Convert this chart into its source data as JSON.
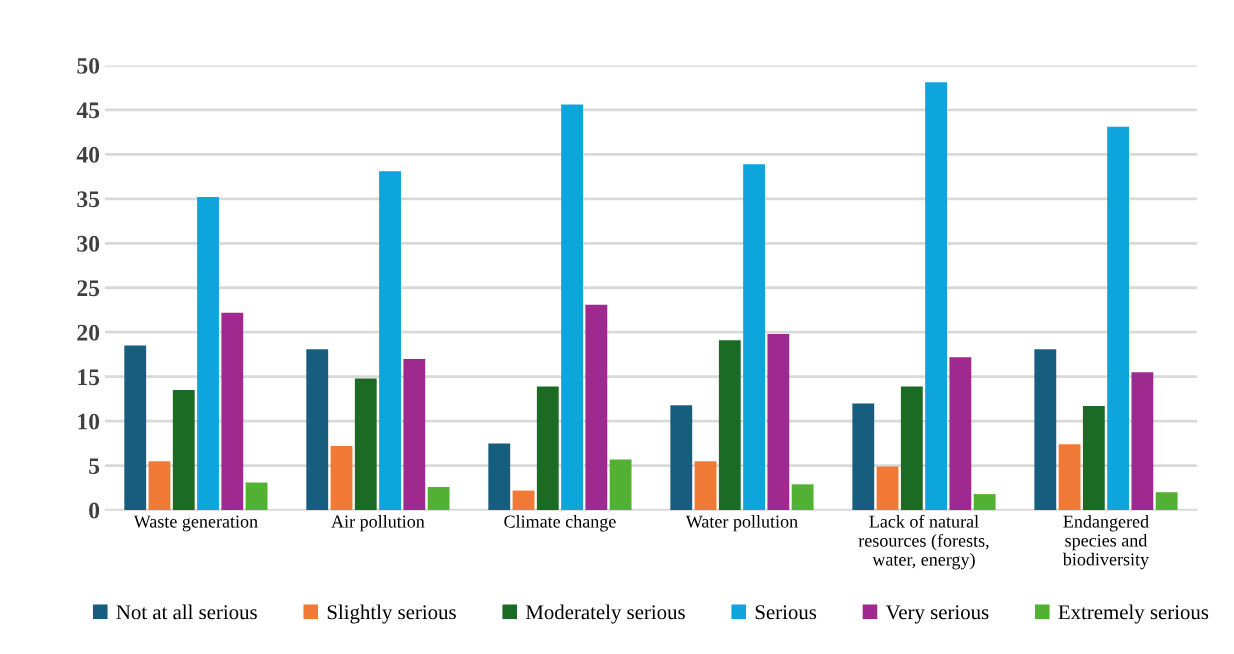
{
  "chart_data": {
    "type": "bar",
    "categories": [
      "Waste generation",
      "Air pollution",
      "Climate change",
      "Water pollution",
      "Lack of natural\nresources (forests,\nwater, energy)",
      "Endangered\nspecies and\nbiodiversity"
    ],
    "series": [
      {
        "name": "Not at all serious",
        "color": "#175e7e",
        "values": [
          18.5,
          18.1,
          7.5,
          11.8,
          12.0,
          18.1
        ]
      },
      {
        "name": "Slightly serious",
        "color": "#f07a35",
        "values": [
          5.5,
          7.2,
          2.2,
          5.5,
          4.9,
          7.4
        ]
      },
      {
        "name": "Moderately serious",
        "color": "#1c6b25",
        "values": [
          13.5,
          14.8,
          13.9,
          19.1,
          13.9,
          11.7
        ]
      },
      {
        "name": "Serious",
        "color": "#0ea5dc",
        "values": [
          35.2,
          38.1,
          45.6,
          38.9,
          48.1,
          43.1
        ]
      },
      {
        "name": "Very serious",
        "color": "#9e2a8f",
        "values": [
          22.2,
          17.0,
          23.1,
          19.8,
          17.2,
          15.5
        ]
      },
      {
        "name": "Extremely serious",
        "color": "#52b132",
        "values": [
          3.1,
          2.6,
          5.7,
          2.9,
          1.8,
          2.0
        ]
      }
    ],
    "ylim": [
      0,
      50
    ],
    "yticks": [
      0,
      5,
      10,
      15,
      20,
      25,
      30,
      35,
      40,
      45,
      50
    ],
    "grid": "y",
    "legend": "bottom"
  }
}
